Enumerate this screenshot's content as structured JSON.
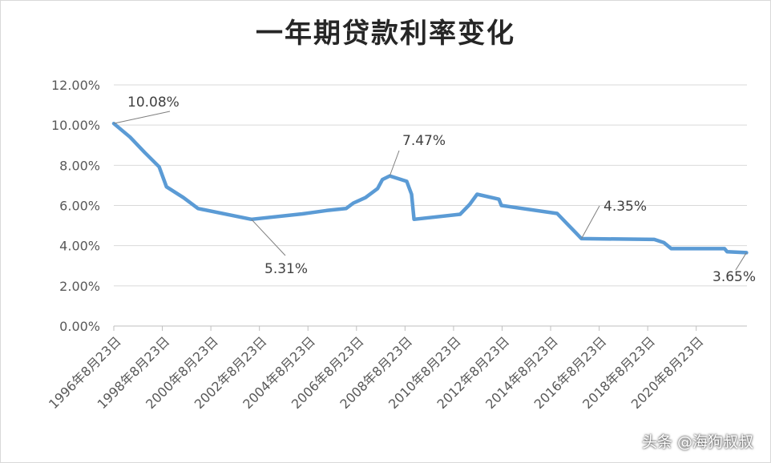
{
  "chart_data": {
    "type": "line",
    "title": "一年期贷款利率变化",
    "y_ticks": [
      "0.00%",
      "2.00%",
      "4.00%",
      "6.00%",
      "8.00%",
      "10.00%",
      "12.00%"
    ],
    "ylim": [
      0,
      12
    ],
    "x_ticks": [
      "1996年8月23日",
      "1998年8月23日",
      "2000年8月23日",
      "2002年8月23日",
      "2004年8月23日",
      "2006年8月23日",
      "2008年8月23日",
      "2010年8月23日",
      "2012年8月23日",
      "2014年8月23日",
      "2016年8月23日",
      "2018年8月23日",
      "2020年8月23日"
    ],
    "grid": true,
    "line_color": "#5b9bd5",
    "series": [
      {
        "values": [
          [
            1996.63,
            10.08
          ],
          [
            1997.3,
            9.4
          ],
          [
            1997.9,
            8.64
          ],
          [
            1998.5,
            7.92
          ],
          [
            1998.8,
            6.93
          ],
          [
            1999.5,
            6.39
          ],
          [
            2000.1,
            5.85
          ],
          [
            2002.3,
            5.31
          ],
          [
            2004.4,
            5.58
          ],
          [
            2005.4,
            5.75
          ],
          [
            2006.2,
            5.85
          ],
          [
            2006.5,
            6.12
          ],
          [
            2007.0,
            6.39
          ],
          [
            2007.5,
            6.84
          ],
          [
            2007.7,
            7.29
          ],
          [
            2008.0,
            7.47
          ],
          [
            2008.7,
            7.2
          ],
          [
            2008.9,
            6.56
          ],
          [
            2009.0,
            5.31
          ],
          [
            2010.9,
            5.56
          ],
          [
            2011.3,
            6.06
          ],
          [
            2011.6,
            6.56
          ],
          [
            2012.5,
            6.31
          ],
          [
            2012.6,
            6.0
          ],
          [
            2014.9,
            5.6
          ],
          [
            2015.3,
            5.1
          ],
          [
            2015.7,
            4.6
          ],
          [
            2015.9,
            4.35
          ],
          [
            2018.9,
            4.31
          ],
          [
            2019.3,
            4.15
          ],
          [
            2019.6,
            3.85
          ],
          [
            2021.8,
            3.85
          ],
          [
            2021.9,
            3.7
          ],
          [
            2022.7,
            3.65
          ]
        ]
      }
    ],
    "annotations": [
      {
        "text": "10.08%",
        "x": 1996.63,
        "y": 10.08
      },
      {
        "text": "7.47%",
        "x": 2008.0,
        "y": 7.47
      },
      {
        "text": "5.31%",
        "x": 2002.3,
        "y": 5.31
      },
      {
        "text": "4.35%",
        "x": 2015.9,
        "y": 4.35
      },
      {
        "text": "3.65%",
        "x": 2022.7,
        "y": 3.65
      }
    ]
  },
  "watermark": "头条 @海狗叔叔"
}
